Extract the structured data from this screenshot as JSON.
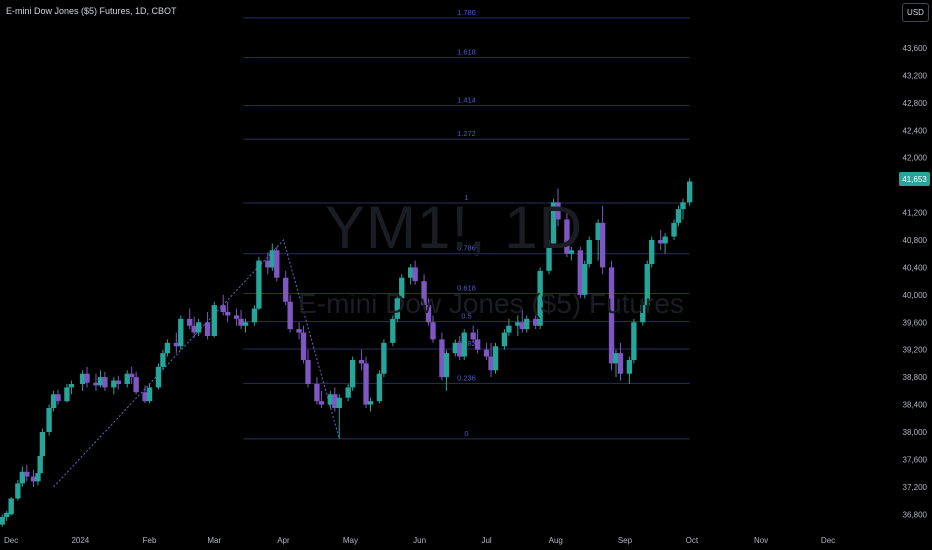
{
  "header": {
    "symbol_title": "E-mini Dow Jones ($5) Futures, 1D, CBOT",
    "currency_button": "USD"
  },
  "watermark": {
    "symbol": "YM1!, 1D",
    "description": "E-mini Dow Jones ($5) Futures"
  },
  "last_price": "41,653",
  "colors": {
    "background": "#000000",
    "up_candle": "#26a69a",
    "down_candle": "#7e57c2",
    "fib_line": "#2a2e5e",
    "fib_label": "#4f5bd5",
    "trend_line": "#5c6bc0",
    "axis_text": "#b2b5be"
  },
  "chart_data": {
    "type": "candlestick",
    "title": "E-mini Dow Jones ($5) Futures, 1D, CBOT",
    "currency": "USD",
    "y_axis": {
      "ticks": [
        36800,
        37200,
        37600,
        38000,
        38400,
        38800,
        39200,
        39600,
        40000,
        40400,
        40800,
        41200,
        42000,
        42400,
        42800,
        43200,
        43600
      ],
      "tick_labels": [
        "36,800",
        "37,200",
        "37,600",
        "38,000",
        "38,400",
        "38,800",
        "39,200",
        "39,600",
        "40,000",
        "40,400",
        "40,800",
        "41,200",
        "42,000",
        "42,400",
        "42,800",
        "43,200",
        "43,600"
      ],
      "range": [
        36600,
        44300
      ],
      "position": "right"
    },
    "x_axis": {
      "tick_labels": [
        "Dec",
        "2024",
        "Feb",
        "Mar",
        "Apr",
        "May",
        "Jun",
        "Jul",
        "Aug",
        "Sep",
        "Oct",
        "Nov",
        "Dec"
      ],
      "tick_dates": [
        "2023-12-01",
        "2024-01-01",
        "2024-02-01",
        "2024-03-01",
        "2024-04-01",
        "2024-05-01",
        "2024-06-01",
        "2024-07-01",
        "2024-08-01",
        "2024-09-01",
        "2024-10-01",
        "2024-11-01",
        "2024-12-01"
      ],
      "range": [
        "2023-11-26",
        "2024-12-31"
      ]
    },
    "last_price": 41653,
    "trend_line": {
      "style": "dashed",
      "points": [
        {
          "date": "2023-12-20",
          "price": 37200
        },
        {
          "date": "2024-04-01",
          "price": 40800
        },
        {
          "date": "2024-04-26",
          "price": 37900
        }
      ]
    },
    "fibonacci": {
      "start": "2024-03-14",
      "end": "2024-09-30",
      "levels": [
        {
          "ratio": "0",
          "price": 37900
        },
        {
          "ratio": "0.236",
          "price": 38710
        },
        {
          "ratio": "0.382",
          "price": 39210
        },
        {
          "ratio": "0.5",
          "price": 39610
        },
        {
          "ratio": "0.618",
          "price": 40020
        },
        {
          "ratio": "0.786",
          "price": 40600
        },
        {
          "ratio": "1",
          "price": 41340
        },
        {
          "ratio": "1.272",
          "price": 42270
        },
        {
          "ratio": "1.414",
          "price": 42760
        },
        {
          "ratio": "1.618",
          "price": 43460
        },
        {
          "ratio": "1.786",
          "price": 44040
        }
      ]
    },
    "candles": [
      [
        "2023-11-27",
        36650,
        36800,
        36620,
        36760
      ],
      [
        "2023-11-29",
        36760,
        36850,
        36700,
        36820
      ],
      [
        "2023-12-01",
        36800,
        37050,
        36780,
        37030
      ],
      [
        "2023-12-04",
        37030,
        37300,
        37000,
        37250
      ],
      [
        "2023-12-06",
        37250,
        37500,
        37200,
        37420
      ],
      [
        "2023-12-08",
        37420,
        37520,
        37280,
        37350
      ],
      [
        "2023-12-11",
        37350,
        37450,
        37200,
        37280
      ],
      [
        "2023-12-13",
        37280,
        37450,
        37220,
        37400
      ],
      [
        "2023-12-14",
        37400,
        37700,
        37380,
        37650
      ],
      [
        "2023-12-15",
        37650,
        38050,
        37620,
        38000
      ],
      [
        "2023-12-18",
        38000,
        38400,
        37950,
        38350
      ],
      [
        "2023-12-20",
        38350,
        38600,
        38300,
        38550
      ],
      [
        "2023-12-22",
        38550,
        38620,
        38400,
        38450
      ],
      [
        "2023-12-26",
        38450,
        38700,
        38430,
        38650
      ],
      [
        "2023-12-28",
        38650,
        38750,
        38550,
        38700
      ],
      [
        "2024-01-02",
        38700,
        38900,
        38600,
        38850
      ],
      [
        "2024-01-04",
        38850,
        38950,
        38650,
        38720
      ],
      [
        "2024-01-08",
        38720,
        38850,
        38600,
        38680
      ],
      [
        "2024-01-10",
        38680,
        38900,
        38650,
        38800
      ],
      [
        "2024-01-12",
        38800,
        38880,
        38600,
        38650
      ],
      [
        "2024-01-16",
        38650,
        38800,
        38550,
        38750
      ],
      [
        "2024-01-18",
        38750,
        38820,
        38620,
        38700
      ],
      [
        "2024-01-22",
        38700,
        38900,
        38650,
        38850
      ],
      [
        "2024-01-24",
        38850,
        38950,
        38700,
        38800
      ],
      [
        "2024-01-26",
        38800,
        38880,
        38550,
        38580
      ],
      [
        "2024-01-30",
        38580,
        38680,
        38420,
        38450
      ],
      [
        "2024-02-01",
        38450,
        38700,
        38420,
        38650
      ],
      [
        "2024-02-05",
        38650,
        39000,
        38620,
        38950
      ],
      [
        "2024-02-07",
        38950,
        39200,
        38900,
        39150
      ],
      [
        "2024-02-09",
        39150,
        39350,
        39100,
        39300
      ],
      [
        "2024-02-13",
        39300,
        39450,
        39150,
        39250
      ],
      [
        "2024-02-15",
        39250,
        39700,
        39200,
        39650
      ],
      [
        "2024-02-19",
        39650,
        39800,
        39500,
        39550
      ],
      [
        "2024-02-21",
        39550,
        39680,
        39380,
        39450
      ],
      [
        "2024-02-23",
        39450,
        39650,
        39400,
        39600
      ],
      [
        "2024-02-27",
        39600,
        39750,
        39350,
        39400
      ],
      [
        "2024-03-01",
        39400,
        39900,
        39380,
        39850
      ],
      [
        "2024-03-05",
        39850,
        40000,
        39700,
        39750
      ],
      [
        "2024-03-07",
        39750,
        39900,
        39600,
        39700
      ],
      [
        "2024-03-11",
        39700,
        39800,
        39550,
        39650
      ],
      [
        "2024-03-13",
        39650,
        39780,
        39500,
        39550
      ],
      [
        "2024-03-15",
        39550,
        39650,
        39450,
        39600
      ],
      [
        "2024-03-19",
        39600,
        39850,
        39550,
        39800
      ],
      [
        "2024-03-21",
        39800,
        40550,
        39780,
        40500
      ],
      [
        "2024-03-25",
        40500,
        40620,
        40300,
        40400
      ],
      [
        "2024-03-27",
        40400,
        40750,
        40350,
        40650
      ],
      [
        "2024-03-29",
        40650,
        40700,
        40200,
        40250
      ],
      [
        "2024-04-02",
        40250,
        40350,
        39850,
        39900
      ],
      [
        "2024-04-04",
        39900,
        40000,
        39450,
        39500
      ],
      [
        "2024-04-08",
        39500,
        39600,
        39350,
        39450
      ],
      [
        "2024-04-10",
        39450,
        39550,
        39000,
        39050
      ],
      [
        "2024-04-12",
        39050,
        39200,
        38650,
        38700
      ],
      [
        "2024-04-16",
        38700,
        38800,
        38400,
        38450
      ],
      [
        "2024-04-18",
        38450,
        38600,
        38350,
        38400
      ],
      [
        "2024-04-22",
        38400,
        38600,
        38350,
        38550
      ],
      [
        "2024-04-24",
        38550,
        38650,
        38300,
        38350
      ],
      [
        "2024-04-26",
        38350,
        38550,
        37900,
        38500
      ],
      [
        "2024-04-30",
        38500,
        38700,
        38450,
        38650
      ],
      [
        "2024-05-02",
        38650,
        39100,
        38600,
        39050
      ],
      [
        "2024-05-06",
        39050,
        39200,
        38900,
        39000
      ],
      [
        "2024-05-08",
        39000,
        39100,
        38350,
        38400
      ],
      [
        "2024-05-10",
        38400,
        38500,
        38300,
        38450
      ],
      [
        "2024-05-14",
        38450,
        38900,
        38420,
        38850
      ],
      [
        "2024-05-16",
        38850,
        39350,
        38800,
        39300
      ],
      [
        "2024-05-20",
        39300,
        39700,
        39250,
        39650
      ],
      [
        "2024-05-22",
        39650,
        40000,
        39600,
        39950
      ],
      [
        "2024-05-24",
        39950,
        40300,
        39900,
        40250
      ],
      [
        "2024-05-28",
        40250,
        40450,
        40150,
        40400
      ],
      [
        "2024-05-30",
        40400,
        40500,
        40150,
        40200
      ],
      [
        "2024-06-03",
        40200,
        40300,
        39800,
        39850
      ],
      [
        "2024-06-05",
        39850,
        39950,
        39550,
        39600
      ],
      [
        "2024-06-07",
        39600,
        39700,
        39300,
        39350
      ],
      [
        "2024-06-11",
        39350,
        39450,
        38750,
        38800
      ],
      [
        "2024-06-13",
        38800,
        39200,
        38600,
        39150
      ],
      [
        "2024-06-17",
        39150,
        39350,
        39100,
        39300
      ],
      [
        "2024-06-19",
        39300,
        39400,
        39050,
        39100
      ],
      [
        "2024-06-21",
        39100,
        39500,
        39050,
        39450
      ],
      [
        "2024-06-25",
        39450,
        39550,
        39300,
        39350
      ],
      [
        "2024-06-27",
        39350,
        39500,
        39150,
        39200
      ],
      [
        "2024-07-01",
        39200,
        39300,
        39050,
        39100
      ],
      [
        "2024-07-03",
        39100,
        39300,
        38800,
        38900
      ],
      [
        "2024-07-05",
        38900,
        39300,
        38850,
        39250
      ],
      [
        "2024-07-09",
        39250,
        39500,
        39200,
        39450
      ],
      [
        "2024-07-11",
        39450,
        39650,
        39400,
        39550
      ],
      [
        "2024-07-15",
        39550,
        39700,
        39400,
        39600
      ],
      [
        "2024-07-17",
        39600,
        39800,
        39450,
        39500
      ],
      [
        "2024-07-19",
        39500,
        39700,
        39450,
        39650
      ],
      [
        "2024-07-23",
        39650,
        39750,
        39500,
        39550
      ],
      [
        "2024-07-25",
        39550,
        40400,
        39500,
        40350
      ],
      [
        "2024-07-29",
        40350,
        40800,
        40300,
        40750
      ],
      [
        "2024-07-31",
        40750,
        41400,
        40700,
        41350
      ],
      [
        "2024-08-02",
        41350,
        41550,
        41000,
        41100
      ],
      [
        "2024-08-06",
        41100,
        41200,
        40550,
        40600
      ],
      [
        "2024-08-08",
        40600,
        40700,
        40500,
        40650
      ],
      [
        "2024-08-12",
        40650,
        40700,
        39950,
        40000
      ],
      [
        "2024-08-14",
        40000,
        40500,
        39950,
        40450
      ],
      [
        "2024-08-16",
        40450,
        40850,
        40400,
        40800
      ],
      [
        "2024-08-20",
        40800,
        41100,
        40500,
        41050
      ],
      [
        "2024-08-22",
        41050,
        41300,
        40300,
        40400
      ],
      [
        "2024-08-26",
        40400,
        40500,
        38900,
        39000
      ],
      [
        "2024-08-28",
        39000,
        39200,
        38800,
        39150
      ],
      [
        "2024-08-30",
        39150,
        39300,
        38750,
        38850
      ],
      [
        "2024-09-03",
        38850,
        39100,
        38700,
        39050
      ],
      [
        "2024-09-05",
        39050,
        39650,
        39000,
        39600
      ],
      [
        "2024-09-09",
        39600,
        39900,
        39550,
        39850
      ],
      [
        "2024-09-11",
        39850,
        40500,
        39800,
        40450
      ],
      [
        "2024-09-13",
        40450,
        40850,
        40400,
        40800
      ],
      [
        "2024-09-17",
        40800,
        40950,
        40650,
        40750
      ],
      [
        "2024-09-19",
        40750,
        40900,
        40600,
        40850
      ],
      [
        "2024-09-23",
        40850,
        41100,
        40800,
        41050
      ],
      [
        "2024-09-25",
        41050,
        41300,
        41000,
        41250
      ],
      [
        "2024-09-27",
        41250,
        41400,
        41100,
        41350
      ],
      [
        "2024-09-30",
        41350,
        41700,
        41300,
        41653
      ]
    ]
  }
}
